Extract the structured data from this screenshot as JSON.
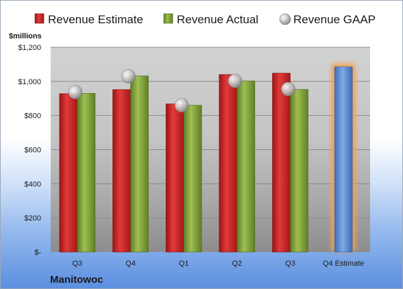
{
  "chart_data": {
    "type": "bar",
    "unit_label": "$millions",
    "company": "Manitowoc",
    "categories": [
      "Q3",
      "Q4",
      "Q1",
      "Q2",
      "Q3",
      "Q4 Estimate"
    ],
    "series": [
      {
        "name": "Revenue Estimate",
        "color": "#d42a2a",
        "values": [
          928,
          952,
          868,
          1040,
          1048,
          null
        ]
      },
      {
        "name": "Revenue Actual",
        "color": "#86a93b",
        "values": [
          930,
          1032,
          860,
          1003,
          953,
          1085
        ]
      },
      {
        "name": "Revenue GAAP",
        "color": "#b5b5b5",
        "values": [
          937,
          1030,
          860,
          1003,
          955,
          null
        ]
      }
    ],
    "estimate_bar_color": "#5f8fd2",
    "estimate_glow_color": "#f5a04a",
    "ylim": [
      0,
      1200
    ],
    "yticks": [
      0,
      200,
      400,
      600,
      800,
      1000,
      1200
    ],
    "ytick_labels": [
      "$-",
      "$200",
      "$400",
      "$600",
      "$800",
      "$1,000",
      "$1,200"
    ],
    "grid": true,
    "legend_position": "top"
  }
}
